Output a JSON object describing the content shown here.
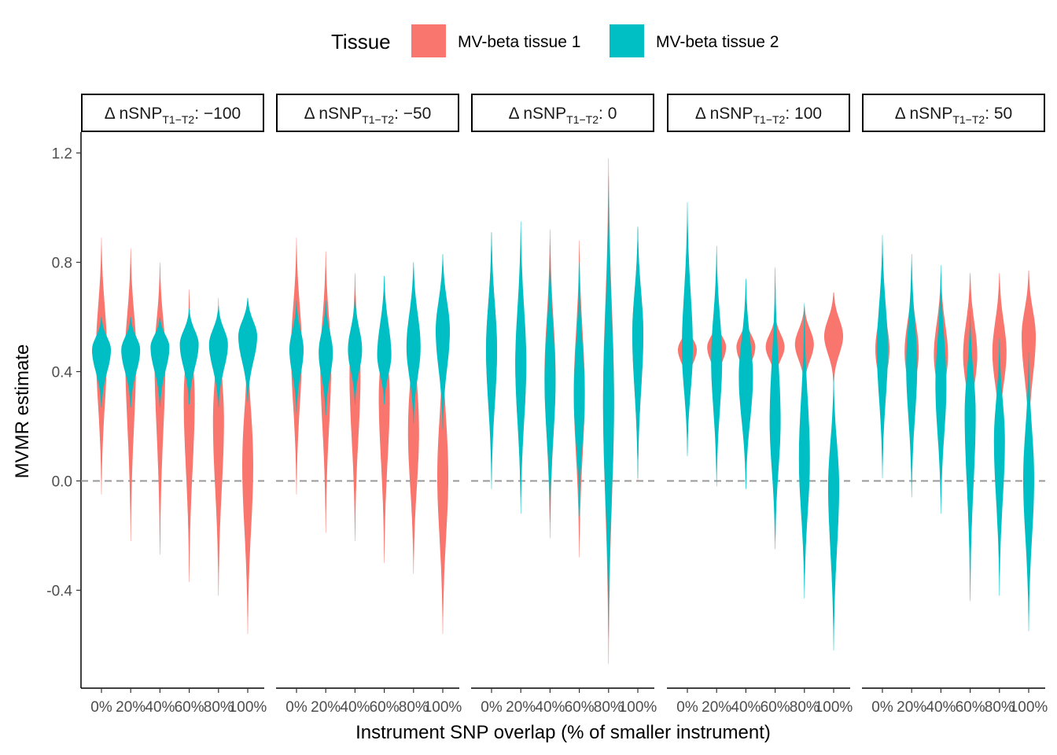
{
  "chart_data": {
    "type": "violin",
    "title": "",
    "xlabel": "Instrument SNP overlap (% of smaller instrument)",
    "ylabel": "MVMR estimate",
    "ylim": [
      -0.7,
      1.27
    ],
    "y_ticks": [
      1.2,
      0.8,
      0.4,
      0.0,
      -0.4
    ],
    "y_tick_labels": [
      "1.2",
      "0.8",
      "0.4",
      "0.0",
      "-0.4"
    ],
    "reference_line": {
      "y": 0.0,
      "style": "dashed",
      "color": "#999999"
    },
    "categories": [
      "0%",
      "20%",
      "40%",
      "60%",
      "80%",
      "100%"
    ],
    "legend": {
      "title": "Tissue",
      "position": "top",
      "entries": [
        {
          "label": "MV-beta tissue 1",
          "color": "#F8766D"
        },
        {
          "label": "MV-beta tissue 2",
          "color": "#00BFC4"
        }
      ]
    },
    "facet_variable": "Δ nSNP",
    "facet_subscript": "T1−T2",
    "grid": false,
    "panels": [
      {
        "label_value": "−100",
        "series": [
          {
            "name": "MV-beta tissue 1",
            "min": [
              -0.05,
              -0.22,
              -0.27,
              -0.37,
              -0.42,
              -0.56
            ],
            "median": [
              0.48,
              0.47,
              0.46,
              0.3,
              0.22,
              0.06
            ],
            "max": [
              0.89,
              0.85,
              0.8,
              0.7,
              0.67,
              0.56
            ]
          },
          {
            "name": "MV-beta tissue 2",
            "min": [
              0.27,
              0.27,
              0.27,
              0.28,
              0.27,
              0.29
            ],
            "median": [
              0.48,
              0.48,
              0.49,
              0.5,
              0.5,
              0.53
            ],
            "max": [
              0.6,
              0.6,
              0.6,
              0.63,
              0.64,
              0.67
            ]
          }
        ]
      },
      {
        "label_value": "−50",
        "series": [
          {
            "name": "MV-beta tissue 1",
            "min": [
              -0.05,
              -0.19,
              -0.22,
              -0.3,
              -0.34,
              -0.56
            ],
            "median": [
              0.48,
              0.44,
              0.39,
              0.31,
              0.18,
              0.02
            ],
            "max": [
              0.89,
              0.84,
              0.76,
              0.67,
              0.66,
              0.55
            ]
          },
          {
            "name": "MV-beta tissue 2",
            "min": [
              0.25,
              0.24,
              0.28,
              0.28,
              0.21,
              0.19
            ],
            "median": [
              0.48,
              0.47,
              0.48,
              0.46,
              0.49,
              0.55
            ],
            "max": [
              0.66,
              0.66,
              0.68,
              0.75,
              0.8,
              0.83
            ]
          }
        ]
      },
      {
        "label_value": "0",
        "series": [
          {
            "name": "MV-beta tissue 1",
            "min": [
              0.0,
              -0.1,
              -0.21,
              -0.28,
              -0.67,
              0.0
            ],
            "median": [
              0.48,
              0.43,
              0.39,
              0.33,
              0.3,
              0.54
            ],
            "max": [
              0.91,
              0.89,
              0.92,
              0.88,
              1.18,
              0.93
            ]
          },
          {
            "name": "MV-beta tissue 2",
            "min": [
              -0.03,
              -0.12,
              -0.15,
              -0.13,
              -0.57,
              0.01
            ],
            "median": [
              0.48,
              0.43,
              0.36,
              0.31,
              0.28,
              0.54
            ],
            "max": [
              0.91,
              0.95,
              0.86,
              0.8,
              1.11,
              0.93
            ]
          }
        ]
      },
      {
        "label_value": "100",
        "series": [
          {
            "name": "MV-beta tissue 1",
            "min": [
              0.35,
              0.35,
              0.35,
              0.37,
              0.35,
              0.36
            ],
            "median": [
              0.48,
              0.49,
              0.49,
              0.49,
              0.5,
              0.53
            ],
            "max": [
              0.58,
              0.59,
              0.6,
              0.61,
              0.64,
              0.69
            ]
          },
          {
            "name": "MV-beta tissue 2",
            "min": [
              0.09,
              -0.02,
              -0.03,
              -0.25,
              -0.43,
              -0.62
            ],
            "median": [
              0.48,
              0.44,
              0.38,
              0.22,
              0.08,
              -0.02
            ],
            "max": [
              1.02,
              0.86,
              0.74,
              0.78,
              0.65,
              0.39
            ]
          }
        ]
      },
      {
        "label_value": "50",
        "series": [
          {
            "name": "MV-beta tissue 1",
            "min": [
              0.25,
              0.22,
              0.2,
              0.18,
              0.17,
              0.15
            ],
            "median": [
              0.48,
              0.47,
              0.46,
              0.46,
              0.47,
              0.53
            ],
            "max": [
              0.73,
              0.75,
              0.76,
              0.76,
              0.76,
              0.77
            ]
          },
          {
            "name": "MV-beta tissue 2",
            "min": [
              0.01,
              -0.06,
              -0.12,
              -0.44,
              -0.42,
              -0.55
            ],
            "median": [
              0.48,
              0.42,
              0.35,
              0.25,
              0.15,
              0.01
            ],
            "max": [
              0.9,
              0.83,
              0.79,
              0.62,
              0.52,
              0.47
            ]
          }
        ]
      }
    ]
  }
}
